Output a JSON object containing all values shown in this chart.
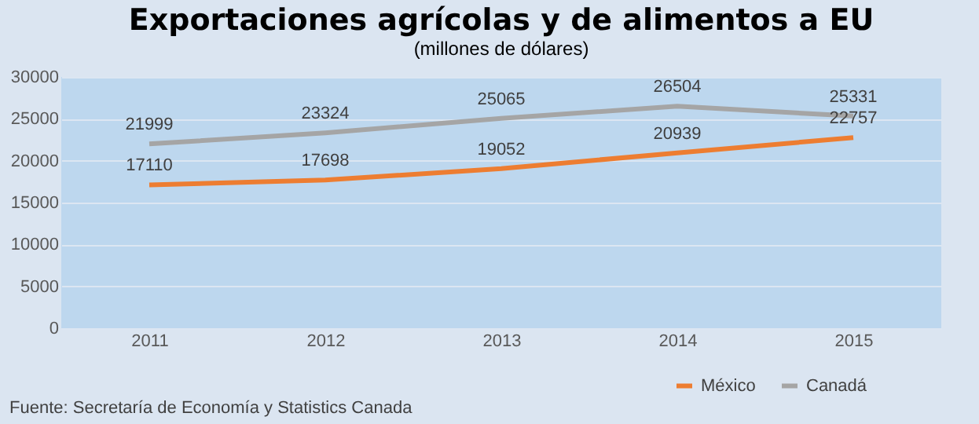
{
  "chart_data": {
    "type": "line",
    "title": "Exportaciones agrícolas y de alimentos a EU",
    "subtitle": "(millones de dólares)",
    "categories": [
      "2011",
      "2012",
      "2013",
      "2014",
      "2015"
    ],
    "series": [
      {
        "name": "México",
        "color": "#ed7d31",
        "values": [
          17110,
          17698,
          19052,
          20939,
          22757
        ]
      },
      {
        "name": "Canadá",
        "color": "#a5a5a5",
        "values": [
          21999,
          23324,
          25065,
          26504,
          25331
        ]
      }
    ],
    "ylim": [
      0,
      30000
    ],
    "yticks": [
      0,
      5000,
      10000,
      15000,
      20000,
      25000,
      30000
    ],
    "grid": "y",
    "legend": "bottom",
    "data_labels": true,
    "annotations": [
      "Fuente: Secretaría de Economía y Statistics Canada"
    ]
  }
}
